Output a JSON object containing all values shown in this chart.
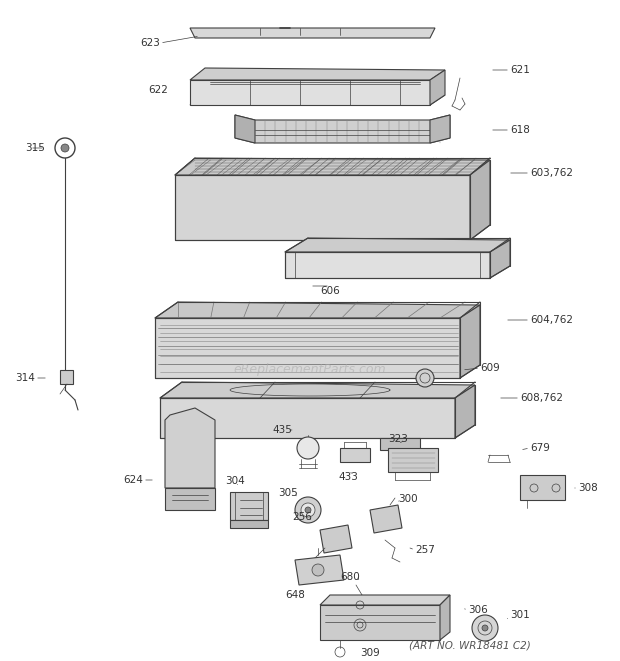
{
  "title": "",
  "footer": "(ART NO. WR18481 C2)",
  "bg_color": "#ffffff",
  "line_color": "#404040",
  "text_color": "#333333",
  "watermark": "eReplacementParts.com"
}
